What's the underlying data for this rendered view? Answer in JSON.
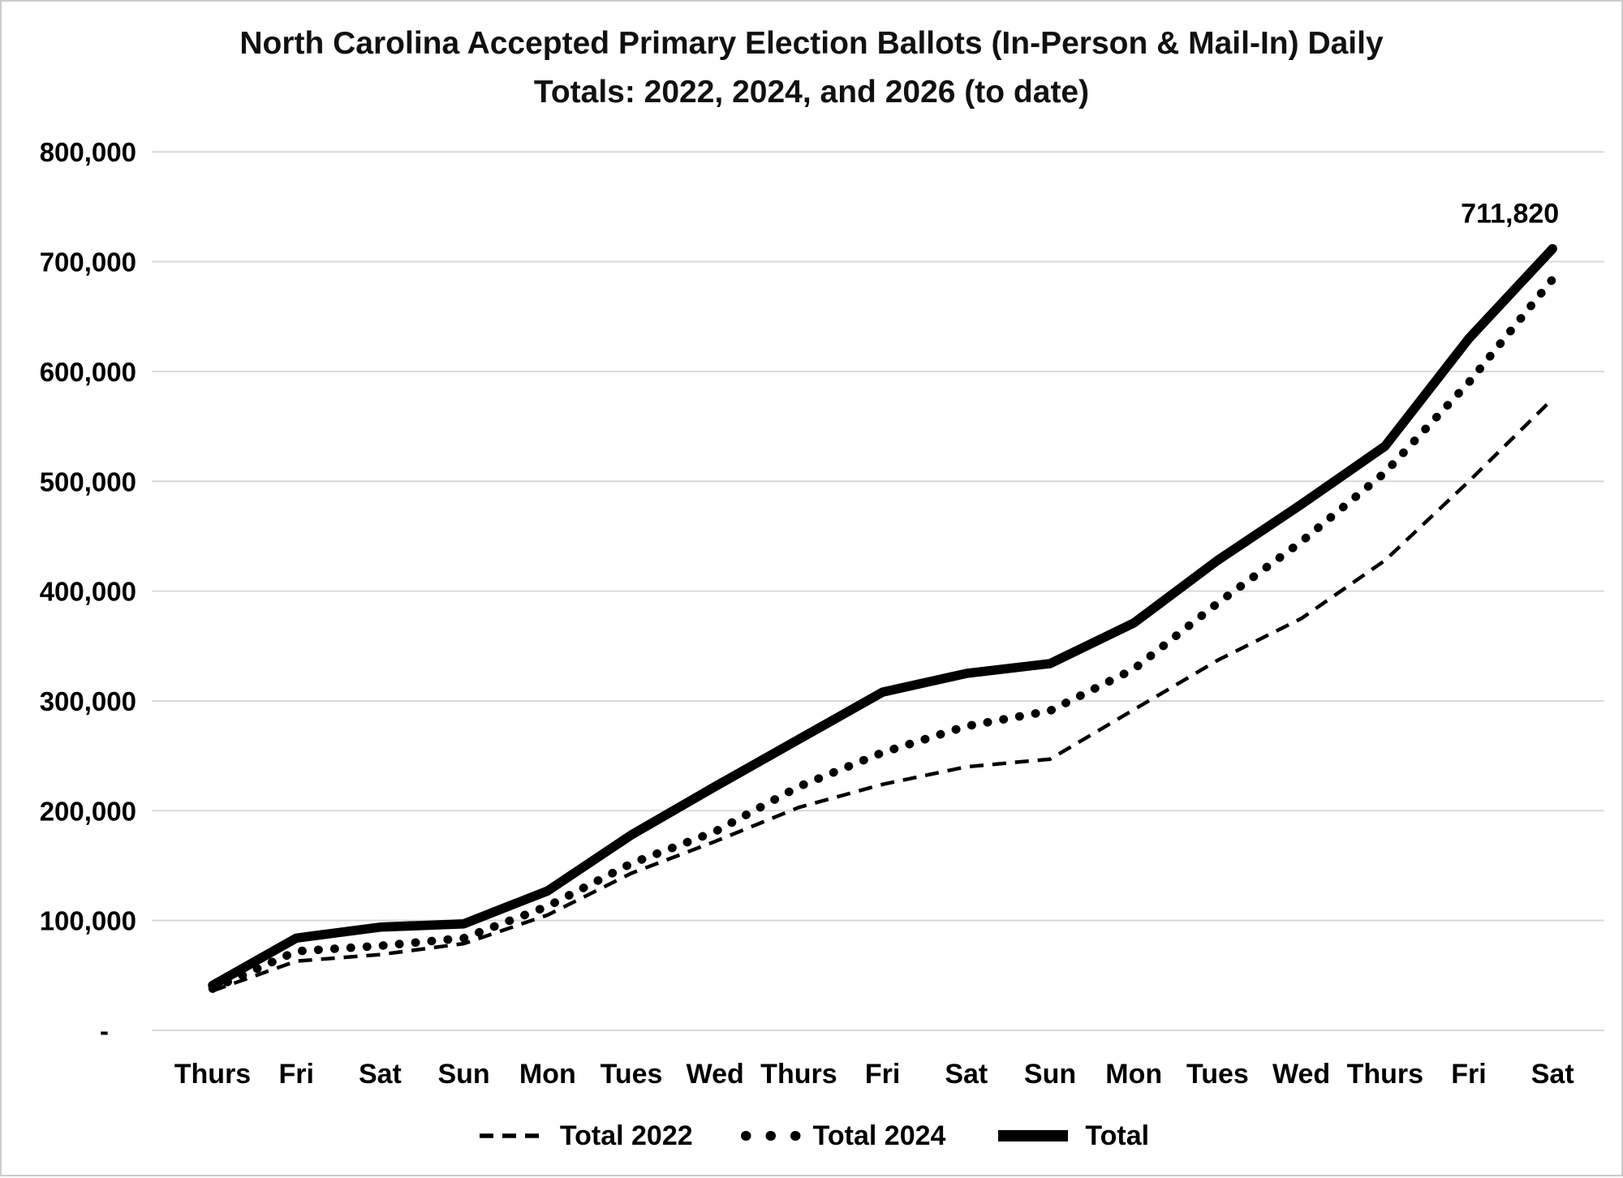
{
  "title_line1": "North Carolina Accepted Primary Election Ballots (In-Person & Mail-In) Daily",
  "title_line2": "Totals: 2022, 2024, and 2026 (to date)",
  "chart_data": {
    "type": "line",
    "categories": [
      "Thurs",
      "Fri",
      "Sat",
      "Sun",
      "Mon",
      "Tues",
      "Wed",
      "Thurs",
      "Fri",
      "Sat",
      "Sun",
      "Mon",
      "Tues",
      "Wed",
      "Thurs",
      "Fri",
      "Sat"
    ],
    "series": [
      {
        "name": "Total 2022",
        "style": "dashed",
        "values": [
          36000,
          63000,
          69000,
          79000,
          105000,
          143000,
          172000,
          203000,
          224000,
          240000,
          247000,
          292000,
          337000,
          375000,
          428000,
          500000,
          575000
        ]
      },
      {
        "name": "Total 2024",
        "style": "dotted",
        "values": [
          38000,
          72000,
          77000,
          84000,
          113000,
          152000,
          181000,
          222000,
          253000,
          277000,
          291000,
          329000,
          389000,
          445000,
          508000,
          590000,
          684000
        ]
      },
      {
        "name": "Total",
        "style": "solid",
        "values": [
          41000,
          84000,
          94000,
          97000,
          127000,
          178000,
          222000,
          265000,
          308000,
          325000,
          334000,
          371000,
          428000,
          479000,
          532000,
          630000,
          711820
        ]
      }
    ],
    "y_tick_labels": [
      "800,000",
      "700,000",
      "600,000",
      "500,000",
      "400,000",
      "300,000",
      "200,000",
      "100,000"
    ],
    "y_zero_label": "-",
    "ylim": [
      0,
      800000
    ],
    "y_step": 100000,
    "grid": "horizontal",
    "legend_position": "bottom",
    "annotation": {
      "text": "711,820",
      "series": "Total",
      "point": "last"
    },
    "line_color": "#000000",
    "gridline_color": "#d9d9d9"
  }
}
